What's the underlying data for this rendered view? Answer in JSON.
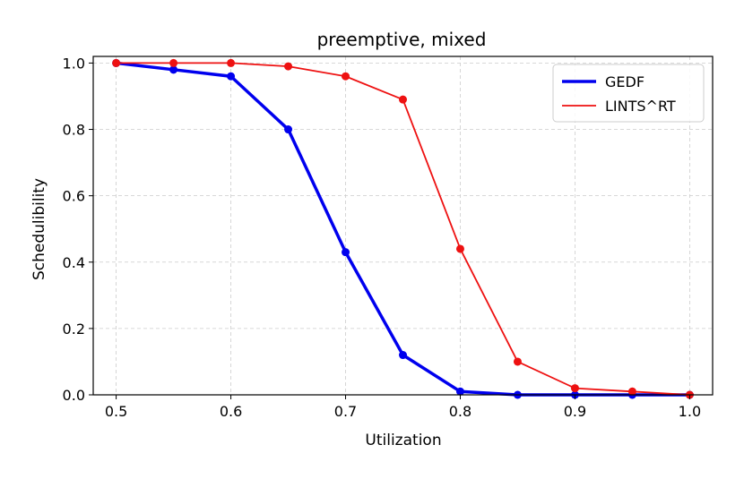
{
  "chart_data": {
    "type": "line",
    "title": "preemptive, mixed",
    "xlabel": "Utilization",
    "ylabel": "Schedulibility",
    "x": [
      0.5,
      0.55,
      0.6,
      0.65,
      0.7,
      0.75,
      0.8,
      0.85,
      0.9,
      0.95,
      1.0
    ],
    "xlim": [
      0.48,
      1.02
    ],
    "ylim": [
      0.0,
      1.02
    ],
    "xticks": [
      0.5,
      0.6,
      0.7,
      0.8,
      0.9,
      1.0
    ],
    "xtick_labels": [
      "0.5",
      "0.6",
      "0.7",
      "0.8",
      "0.9",
      "1.0"
    ],
    "yticks": [
      0.0,
      0.2,
      0.4,
      0.6,
      0.8,
      1.0
    ],
    "ytick_labels": [
      "0.0",
      "0.2",
      "0.4",
      "0.6",
      "0.8",
      "1.0"
    ],
    "grid": true,
    "legend_position": "top-right",
    "series": [
      {
        "name": "GEDF",
        "color": "#0000ee",
        "line_style": "thick",
        "values": [
          1.0,
          0.98,
          0.96,
          0.8,
          0.43,
          0.12,
          0.01,
          0.0,
          0.0,
          0.0,
          0.0
        ]
      },
      {
        "name": "LINTS^RT",
        "color": "#ee1111",
        "line_style": "thin",
        "values": [
          1.0,
          1.0,
          1.0,
          0.99,
          0.96,
          0.89,
          0.44,
          0.1,
          0.02,
          0.01,
          0.0
        ]
      }
    ]
  }
}
